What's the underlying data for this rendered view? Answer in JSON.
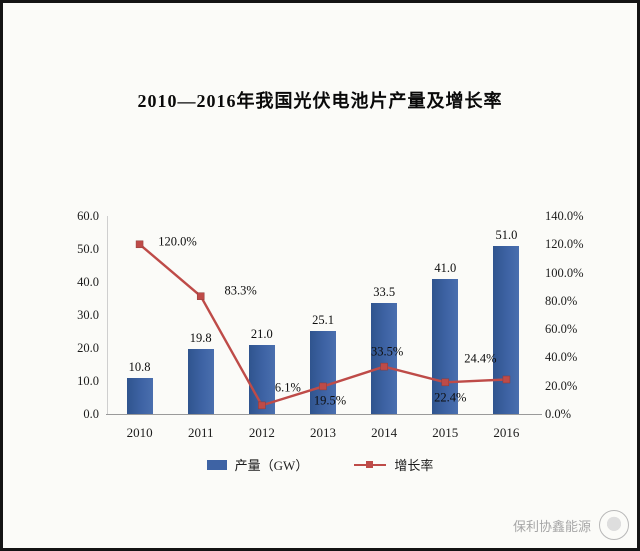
{
  "chart_data": {
    "type": "bar+line",
    "title": "2010—2016年我国光伏电池片产量及增长率",
    "categories": [
      "2010",
      "2011",
      "2012",
      "2013",
      "2014",
      "2015",
      "2016"
    ],
    "series": [
      {
        "name": "产量（GW）",
        "type": "bar",
        "axis": "left",
        "color": "#3A5F9F",
        "values": [
          10.8,
          19.8,
          21.0,
          25.1,
          33.5,
          41.0,
          51.0
        ],
        "labels": [
          "10.8",
          "19.8",
          "21.0",
          "25.1",
          "33.5",
          "41.0",
          "51.0"
        ]
      },
      {
        "name": "增长率",
        "type": "line",
        "axis": "right",
        "color": "#BE4B48",
        "values": [
          120.0,
          83.3,
          6.1,
          19.5,
          33.5,
          22.4,
          24.4
        ],
        "labels": [
          "120.0%",
          "83.3%",
          "6.1%",
          "19.5%",
          "33.5%",
          "22.4%",
          "24.4%"
        ]
      }
    ],
    "left_axis": {
      "min": 0,
      "max": 60,
      "step": 10,
      "tick_labels": [
        "0.0",
        "10.0",
        "20.0",
        "30.0",
        "40.0",
        "50.0",
        "60.0"
      ]
    },
    "right_axis": {
      "min": 0,
      "max": 140,
      "step": 20,
      "tick_labels": [
        "0.0%",
        "20.0%",
        "40.0%",
        "60.0%",
        "80.0%",
        "100.0%",
        "120.0%",
        "140.0%"
      ]
    },
    "legend": [
      {
        "label": "产量（GW）",
        "swatch": "bar"
      },
      {
        "label": "增长率",
        "swatch": "line"
      }
    ],
    "grid": false,
    "legend_position": "bottom"
  },
  "watermark": {
    "text": "保利协鑫能源"
  }
}
